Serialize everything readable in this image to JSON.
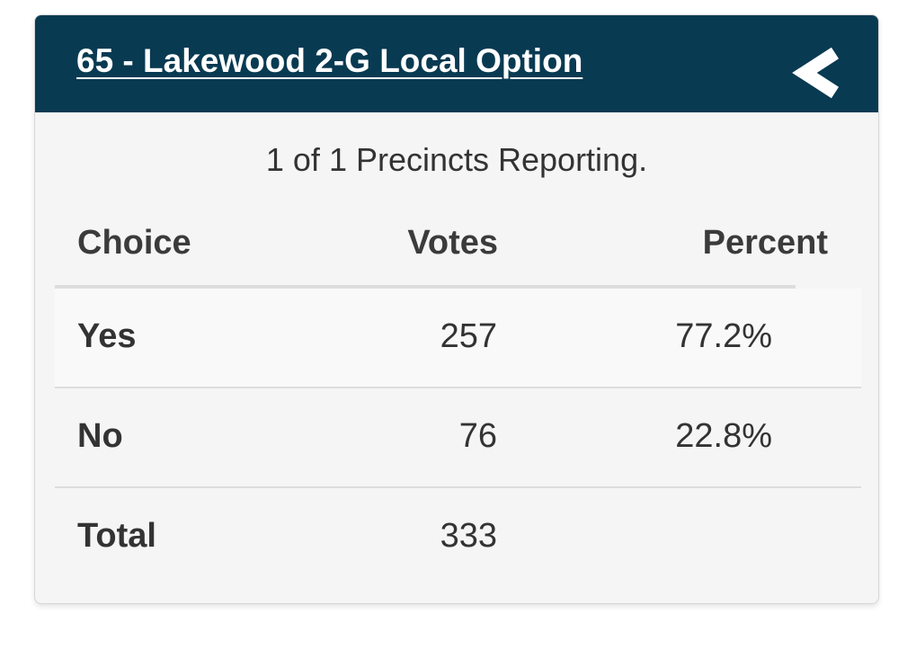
{
  "header": {
    "title": "65 - Lakewood 2-G Local Option",
    "collapse_icon": "chevron-left-icon",
    "background_color": "#083a52"
  },
  "reporting_text": "1 of 1 Precincts Reporting.",
  "table": {
    "columns": [
      "Choice",
      "Votes",
      "Percent"
    ],
    "rows": [
      {
        "choice": "Yes",
        "votes": "257",
        "percent": "77.2%"
      },
      {
        "choice": "No",
        "votes": "76",
        "percent": "22.8%"
      },
      {
        "choice": "Total",
        "votes": "333",
        "percent": ""
      }
    ]
  }
}
